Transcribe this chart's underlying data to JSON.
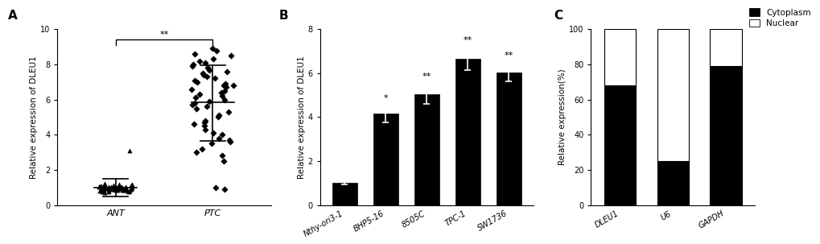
{
  "panel_A": {
    "label": "A",
    "groups": [
      "ANT",
      "PTC"
    ],
    "ANT_points": [
      1.0,
      0.9,
      0.85,
      1.1,
      0.95,
      1.05,
      0.88,
      0.75,
      1.15,
      0.92,
      1.02,
      1.08,
      0.82,
      0.97,
      1.03,
      0.72,
      0.98,
      0.93,
      1.12,
      0.87,
      0.96,
      1.0,
      0.78,
      1.04,
      0.91,
      1.01,
      1.09,
      0.86,
      0.94,
      0.79,
      1.06,
      0.83,
      0.9,
      1.0,
      1.18,
      0.95,
      1.05,
      1.1,
      0.85,
      0.9,
      0.76,
      1.0,
      1.1,
      0.8,
      0.95,
      1.05,
      0.9,
      1.0,
      0.84,
      1.2,
      0.99,
      0.89,
      1.11,
      3.1
    ],
    "PTC_points": [
      8.8,
      8.5,
      8.6,
      8.2,
      8.0,
      8.1,
      7.8,
      7.5,
      7.6,
      7.3,
      7.4,
      7.2,
      7.0,
      6.9,
      7.1,
      6.8,
      6.5,
      6.3,
      6.6,
      6.7,
      6.4,
      6.2,
      6.0,
      5.8,
      5.6,
      5.5,
      5.3,
      5.0,
      4.8,
      4.6,
      4.5,
      4.3,
      4.0,
      3.8,
      3.7,
      3.5,
      3.0,
      2.8,
      2.5,
      1.0,
      0.9,
      8.9,
      8.3,
      7.7,
      7.9,
      6.1,
      5.7,
      5.1,
      4.7,
      4.1,
      3.6,
      3.2,
      5.9,
      6.8
    ],
    "ANT_mean": 1.0,
    "ANT_sd_high": 1.5,
    "ANT_sd_low": 0.5,
    "PTC_mean": 5.85,
    "PTC_sd_high": 7.95,
    "PTC_sd_low": 3.65,
    "ylabel": "Relative expression of DLEU1",
    "ylim": [
      0,
      10
    ],
    "yticks": [
      0,
      2,
      4,
      6,
      8,
      10
    ],
    "significance": "**",
    "marker_ANT": "^",
    "marker_PTC": "D",
    "color": "#000000"
  },
  "panel_B": {
    "label": "B",
    "categories": [
      "Nthy-ori3-1",
      "BHP5-16",
      "8505C",
      "TPC-1",
      "SW1736"
    ],
    "values": [
      1.0,
      4.15,
      5.05,
      6.65,
      6.05
    ],
    "errors": [
      0.07,
      0.38,
      0.45,
      0.5,
      0.42
    ],
    "significance": [
      "",
      "*",
      "**",
      "**",
      "**"
    ],
    "ylabel": "Relative expression of DLEU1",
    "ylim": [
      0,
      8
    ],
    "yticks": [
      0,
      2,
      4,
      6,
      8
    ],
    "bar_color": "#000000"
  },
  "panel_C": {
    "label": "C",
    "categories": [
      "DLEU1",
      "U6",
      "GAPDH"
    ],
    "cytoplasm": [
      68,
      25,
      79
    ],
    "nuclear": [
      32,
      75,
      21
    ],
    "ylabel": "Relative expression(%)",
    "ylim": [
      0,
      100
    ],
    "yticks": [
      0,
      20,
      40,
      60,
      80,
      100
    ],
    "cytoplasm_color": "#000000",
    "nuclear_color": "#ffffff",
    "legend_labels": [
      "Cytoplasm",
      "Nuclear"
    ]
  },
  "figure_bg": "#ffffff",
  "font_color": "#000000",
  "tick_fontsize": 7,
  "label_fontsize": 7.5,
  "panel_label_fontsize": 11
}
